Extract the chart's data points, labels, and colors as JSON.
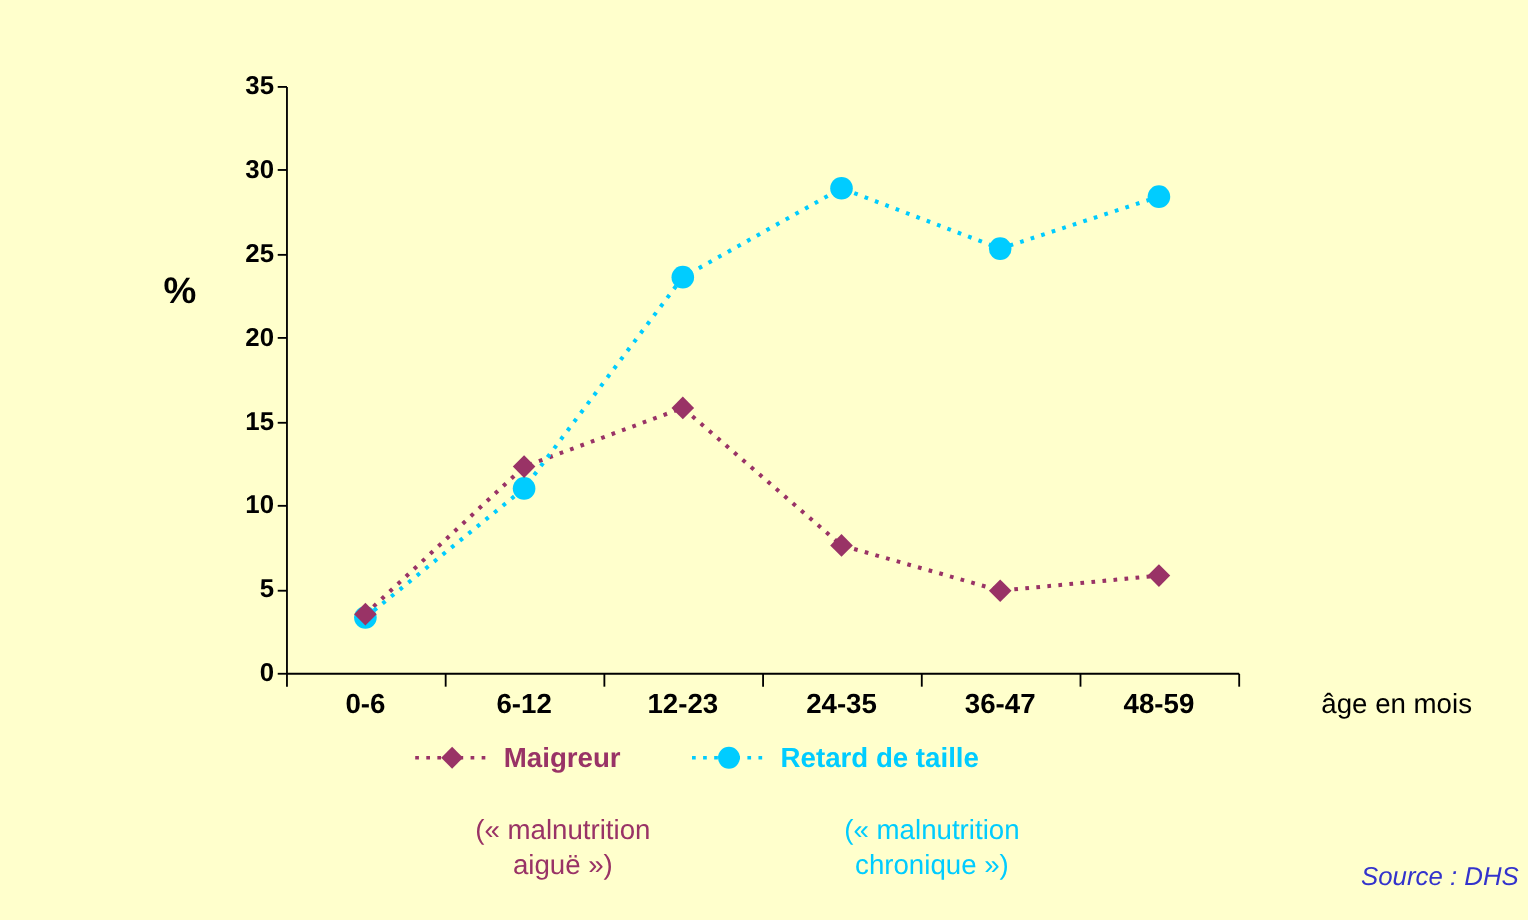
{
  "chart_data": {
    "type": "line",
    "ylabel": "%",
    "xlabel": "âge en mois",
    "categories": [
      "0-6",
      "6-12",
      "12-23",
      "24-35",
      "36-47",
      "48-59"
    ],
    "series": [
      {
        "name": "Maigreur",
        "color": "#993366",
        "marker": "diamond",
        "values": [
          3.5,
          12.3,
          15.8,
          7.6,
          4.9,
          5.8
        ]
      },
      {
        "name": "Retard de taille",
        "color": "#00ccff",
        "marker": "circle",
        "values": [
          3.3,
          11.0,
          23.6,
          28.9,
          25.3,
          28.4
        ]
      }
    ],
    "ylim": [
      0,
      35
    ],
    "yticks": [
      0,
      5,
      10,
      15,
      20,
      25,
      30,
      35
    ],
    "grid": false,
    "legend": "bottom",
    "line_style": "dotted",
    "annotations": [
      "(« malnutrition aiguë »)",
      "(« malnutrition chronique »)",
      "Source : DHS"
    ]
  }
}
